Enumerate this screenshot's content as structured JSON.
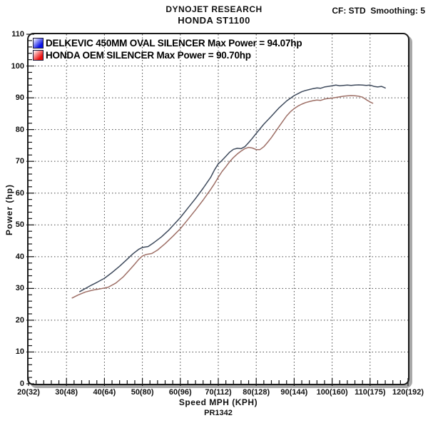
{
  "header": {
    "title": "DYNOJET RESEARCH",
    "subtitle": "HONDA ST1100",
    "cf_smoothing": "CF: STD  Smoothing: 5"
  },
  "legend": [
    {
      "label": "DELKEVIC 450MM OVAL SILENCER Max Power = 94.07hp",
      "swatch": "#0a12e8"
    },
    {
      "label": "HONDA OEM SILENCER Max Power = 90.70hp",
      "swatch": "#ee1010"
    }
  ],
  "footer": {
    "run_id": "PR1342"
  },
  "chart_data": {
    "type": "line",
    "title": "DYNOJET RESEARCH — HONDA ST1100 dyno run",
    "xlabel": "Speed MPH (KPH)",
    "ylabel": "Power (hp)",
    "xlim": [
      20,
      120
    ],
    "ylim": [
      0,
      110
    ],
    "x_major_ticks": [
      20,
      30,
      40,
      50,
      60,
      70,
      80,
      90,
      100,
      110,
      120
    ],
    "x_tick_labels": [
      "20(32)",
      "30(48)",
      "40(64)",
      "50(80)",
      "60(96)",
      "70(112)",
      "80(128)",
      "90(144)",
      "100(160)",
      "110(175)",
      "120(192)"
    ],
    "y_major_ticks": [
      0,
      10,
      20,
      30,
      40,
      50,
      60,
      70,
      80,
      90,
      100,
      110
    ],
    "x_minor_step": 2,
    "y_minor_step": 2,
    "grid": "dotted lines at every major tick",
    "legend_position": "top-left inside plot",
    "series": [
      {
        "name": "DELKEVIC 450MM OVAL SILENCER",
        "max_power_hp": 94.07,
        "color": "#3e4a5c",
        "points": [
          [
            33.5,
            29
          ],
          [
            35,
            30
          ],
          [
            36.5,
            31
          ],
          [
            38,
            31.9
          ],
          [
            40,
            33.2
          ],
          [
            42,
            35
          ],
          [
            44,
            37
          ],
          [
            46,
            39.2
          ],
          [
            47.5,
            40.9
          ],
          [
            49,
            42.3
          ],
          [
            50,
            42.9
          ],
          [
            51.5,
            43.2
          ],
          [
            53,
            44.4
          ],
          [
            55,
            46.2
          ],
          [
            57,
            48.4
          ],
          [
            59,
            51
          ],
          [
            60,
            52.3
          ],
          [
            62,
            55.3
          ],
          [
            64,
            58.3
          ],
          [
            66,
            61.5
          ],
          [
            68,
            65
          ],
          [
            69,
            67.3
          ],
          [
            70,
            69.2
          ],
          [
            71,
            70.3
          ],
          [
            72,
            71.6
          ],
          [
            73,
            72.9
          ],
          [
            74,
            73.8
          ],
          [
            75,
            74.1
          ],
          [
            76,
            74.0
          ],
          [
            77,
            74.6
          ],
          [
            78,
            75.9
          ],
          [
            79,
            77.3
          ],
          [
            80,
            78.8
          ],
          [
            82,
            81.7
          ],
          [
            84,
            84.2
          ],
          [
            86,
            86.8
          ],
          [
            88,
            89
          ],
          [
            90,
            90.7
          ],
          [
            91,
            91.3
          ],
          [
            92,
            91.9
          ],
          [
            93,
            92.3
          ],
          [
            94,
            92.6
          ],
          [
            95,
            92.9
          ],
          [
            96,
            93.1
          ],
          [
            97,
            93.0
          ],
          [
            98,
            93.4
          ],
          [
            99,
            93.6
          ],
          [
            100,
            93.8
          ],
          [
            101,
            94.0
          ],
          [
            102,
            93.8
          ],
          [
            103,
            93.9
          ],
          [
            104,
            94.0
          ],
          [
            105,
            93.9
          ],
          [
            106,
            94.0
          ],
          [
            107,
            94.07
          ],
          [
            108,
            94.0
          ],
          [
            109,
            93.9
          ],
          [
            110,
            94.0
          ],
          [
            111,
            93.6
          ],
          [
            112,
            93.4
          ],
          [
            113,
            93.6
          ],
          [
            114,
            93.1
          ]
        ]
      },
      {
        "name": "HONDA OEM SILENCER",
        "max_power_hp": 90.7,
        "color": "#9e6f66",
        "points": [
          [
            31.5,
            27
          ],
          [
            33,
            27.9
          ],
          [
            35,
            28.9
          ],
          [
            37,
            29.5
          ],
          [
            39,
            29.9
          ],
          [
            41,
            30.4
          ],
          [
            43,
            31.7
          ],
          [
            45,
            33.7
          ],
          [
            47,
            36.3
          ],
          [
            48,
            37.7
          ],
          [
            49,
            39.1
          ],
          [
            50,
            40.2
          ],
          [
            51,
            40.7
          ],
          [
            52.5,
            41
          ],
          [
            54,
            42.1
          ],
          [
            56,
            44.1
          ],
          [
            58,
            46.4
          ],
          [
            60,
            48.8
          ],
          [
            62,
            51.7
          ],
          [
            64,
            54.7
          ],
          [
            66,
            57.8
          ],
          [
            68,
            61.2
          ],
          [
            69,
            63
          ],
          [
            70,
            65
          ],
          [
            71,
            66.8
          ],
          [
            72,
            68.3
          ],
          [
            73,
            69.9
          ],
          [
            74,
            71.2
          ],
          [
            75,
            72.3
          ],
          [
            76,
            73.2
          ],
          [
            77,
            74
          ],
          [
            78,
            74.4
          ],
          [
            79,
            74.2
          ],
          [
            80,
            73.7
          ],
          [
            81,
            73.7
          ],
          [
            82,
            74.6
          ],
          [
            83,
            76
          ],
          [
            84,
            77.5
          ],
          [
            85,
            79.2
          ],
          [
            86,
            80.9
          ],
          [
            87,
            82.6
          ],
          [
            88,
            84.3
          ],
          [
            89,
            85.6
          ],
          [
            90,
            86.6
          ],
          [
            91,
            87.4
          ],
          [
            92,
            88
          ],
          [
            93,
            88.5
          ],
          [
            94,
            88.8
          ],
          [
            95,
            89.1
          ],
          [
            96,
            89.3
          ],
          [
            97,
            89.2
          ],
          [
            98,
            89.6
          ],
          [
            99,
            89.8
          ],
          [
            100,
            89.9
          ],
          [
            101,
            90.1
          ],
          [
            102,
            90.3
          ],
          [
            103,
            90.5
          ],
          [
            104,
            90.6
          ],
          [
            105,
            90.7
          ],
          [
            106,
            90.65
          ],
          [
            107,
            90.5
          ],
          [
            108,
            90.2
          ],
          [
            109,
            89.4
          ],
          [
            110,
            88.7
          ],
          [
            110.7,
            88.3
          ]
        ]
      }
    ]
  }
}
